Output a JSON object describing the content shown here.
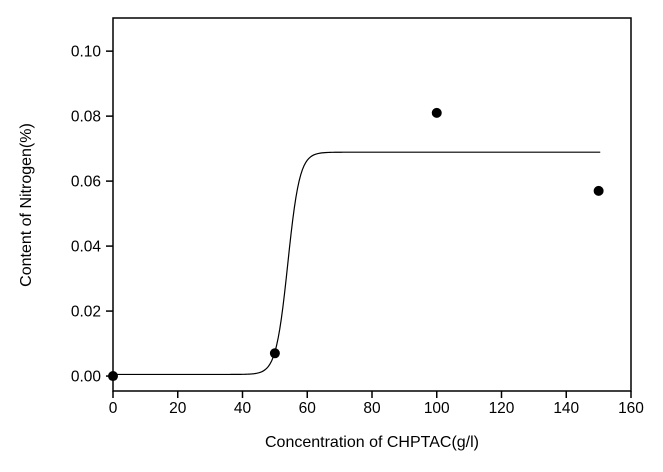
{
  "chart_data": {
    "type": "scatter",
    "title": "",
    "xlabel": "Concentration of CHPTAC(g/l)",
    "ylabel": "Content of Nitrogen(%)",
    "x_axis_range": [
      0,
      160
    ],
    "y_axis_range": [
      -0.0046,
      0.1102
    ],
    "x_ticks": [
      0,
      20,
      40,
      60,
      80,
      100,
      120,
      140,
      160
    ],
    "x_tick_labels": [
      "0",
      "20",
      "40",
      "60",
      "80",
      "100",
      "120",
      "140",
      "160"
    ],
    "y_ticks": [
      0.0,
      0.02,
      0.04,
      0.06,
      0.08,
      0.1
    ],
    "y_tick_labels": [
      "0.00",
      "0.02",
      "0.04",
      "0.06",
      "0.08",
      "0.10"
    ],
    "grid": false,
    "legend": "none",
    "points": [
      {
        "x": 0,
        "y": 0.0
      },
      {
        "x": 50,
        "y": 0.007
      },
      {
        "x": 100,
        "y": 0.081
      },
      {
        "x": 150,
        "y": 0.057
      }
    ],
    "fit_curve": {
      "type": "logistic-sigmoid",
      "baseline": 0.0005,
      "plateau": 0.0689,
      "midpoint_x": 54,
      "rate": 1.83,
      "x_start": 0,
      "x_end": 150.5
    },
    "marker": {
      "shape": "circle",
      "radius_px": 5,
      "fill": "#000000"
    },
    "colors": {
      "foreground": "#000000",
      "background": "#ffffff"
    }
  }
}
